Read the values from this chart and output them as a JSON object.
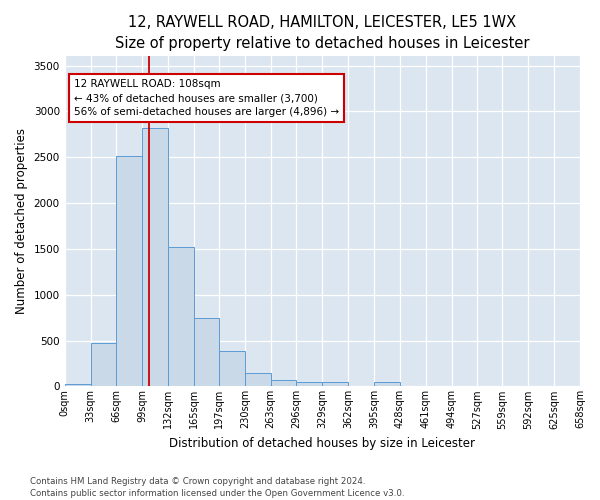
{
  "title": "12, RAYWELL ROAD, HAMILTON, LEICESTER, LE5 1WX",
  "subtitle": "Size of property relative to detached houses in Leicester",
  "xlabel": "Distribution of detached houses by size in Leicester",
  "ylabel": "Number of detached properties",
  "bar_edges": [
    0,
    33,
    66,
    99,
    132,
    165,
    197,
    230,
    263,
    296,
    329,
    362,
    395,
    428,
    461,
    494,
    527,
    559,
    592,
    625,
    658
  ],
  "bar_heights": [
    25,
    475,
    2510,
    2820,
    1520,
    750,
    385,
    145,
    75,
    50,
    50,
    0,
    50,
    0,
    0,
    0,
    0,
    0,
    0,
    0
  ],
  "bar_color": "#c9d9e8",
  "bar_edge_color": "#5b9bd5",
  "property_line_x": 108,
  "property_line_color": "#cc0000",
  "annotation_line1": "12 RAYWELL ROAD: 108sqm",
  "annotation_line2": "← 43% of detached houses are smaller (3,700)",
  "annotation_line3": "56% of semi-detached houses are larger (4,896) →",
  "annotation_box_color": "#ffffff",
  "annotation_box_edge_color": "#cc0000",
  "ylim": [
    0,
    3600
  ],
  "yticks": [
    0,
    500,
    1000,
    1500,
    2000,
    2500,
    3000,
    3500
  ],
  "xlim": [
    0,
    658
  ],
  "background_color": "#dce6f0",
  "grid_color": "#ffffff",
  "footer_line1": "Contains HM Land Registry data © Crown copyright and database right 2024.",
  "footer_line2": "Contains public sector information licensed under the Open Government Licence v3.0.",
  "title_fontsize": 10.5,
  "tick_label_fontsize": 7.0,
  "ylabel_fontsize": 8.5,
  "xlabel_fontsize": 8.5,
  "footer_fontsize": 6.2
}
